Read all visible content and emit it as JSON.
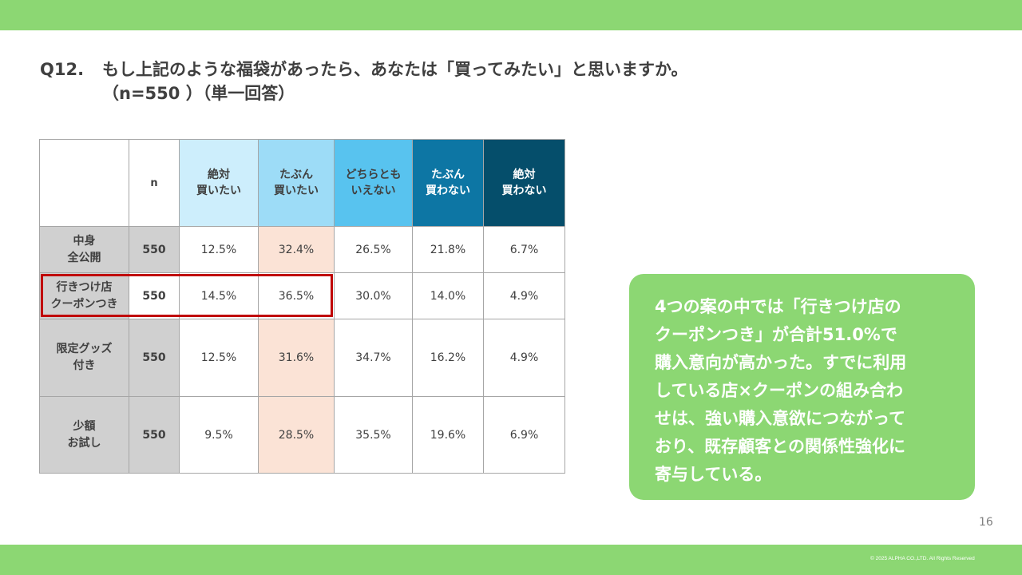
{
  "question": {
    "number": "Q12.",
    "text": "もし上記のような福袋があったら、あなたは「買ってみたい」と思いますか。",
    "subtitle": "（n=550 ）（単一回答）"
  },
  "table": {
    "n_header": "n",
    "columns": [
      [
        "絶対",
        "買いたい"
      ],
      [
        "たぶん",
        "買いたい"
      ],
      [
        "どちらとも",
        "いえない"
      ],
      [
        "たぶん",
        "買わない"
      ],
      [
        "絶対",
        "買わない"
      ]
    ],
    "rows": [
      {
        "label": [
          "中身",
          "全公開"
        ],
        "n": "550",
        "values": [
          "12.5%",
          "32.4%",
          "26.5%",
          "21.8%",
          "6.7%"
        ]
      },
      {
        "label": [
          "行きつけ店",
          "クーポンつき"
        ],
        "n": "550",
        "values": [
          "14.5%",
          "36.5%",
          "30.0%",
          "14.0%",
          "4.9%"
        ]
      },
      {
        "label": [
          "限定グッズ",
          "付き"
        ],
        "n": "550",
        "values": [
          "12.5%",
          "31.6%",
          "34.7%",
          "16.2%",
          "4.9%"
        ]
      },
      {
        "label": [
          "少額",
          "お試し"
        ],
        "n": "550",
        "values": [
          "9.5%",
          "28.5%",
          "35.5%",
          "19.6%",
          "6.9%"
        ]
      }
    ]
  },
  "callout": {
    "lines": [
      "4つの案の中では「行きつけ店の",
      "クーポンつき」が合計51.0%で",
      "購入意向が高かった。すでに利用",
      "している店×クーポンの組み合わ",
      "せは、強い購入意欲につながって",
      "おり、既存顧客との関係性強化に",
      "寄与している。"
    ]
  },
  "footer": {
    "page_number": "16",
    "copyright": "© 2025 ALPHA CO.,LTD. All Rights Reserved"
  },
  "colors": {
    "accent_green": "#8cd773",
    "highlight_red": "#c00000",
    "highlight_peach": "#fbe3d6",
    "scale": [
      "#cdeefc",
      "#9ddcf7",
      "#58c3ef",
      "#0d76a4",
      "#054e6b"
    ]
  }
}
